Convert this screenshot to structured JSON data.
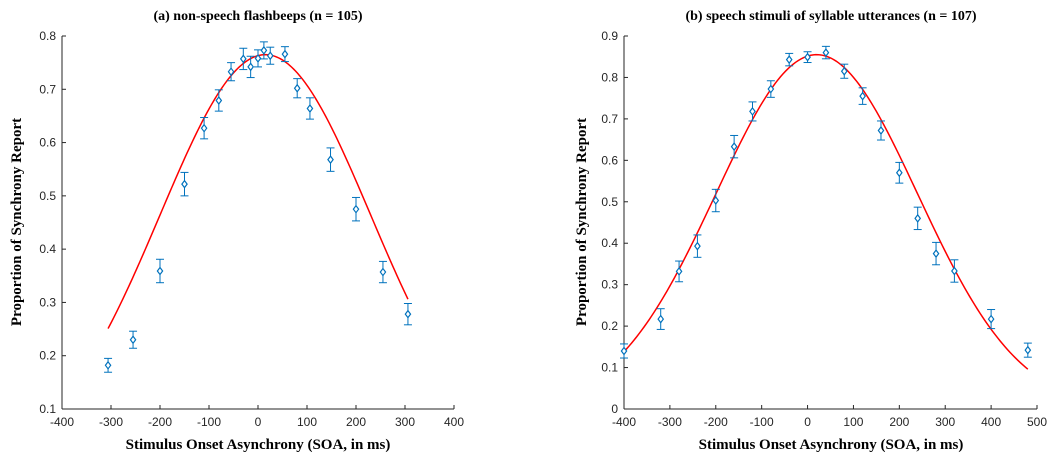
{
  "colors": {
    "data": "#0072bd",
    "fit": "#ff0000",
    "axis": "#262626"
  },
  "chart_data": [
    {
      "type": "scatter",
      "title": "(a) non-speech flashbeeps (n = 105)",
      "xlabel": "Stimulus Onset Asynchrony (SOA, in ms)",
      "ylabel": "Proportion of Synchrony Report",
      "xlim": [
        -400,
        400
      ],
      "ylim": [
        0.1,
        0.8
      ],
      "xticks": [
        -400,
        -300,
        -200,
        -100,
        0,
        100,
        200,
        300,
        400
      ],
      "xtick_labels": [
        "-400",
        "-300",
        "-200",
        "-100",
        "0",
        "100",
        "200",
        "300",
        "400"
      ],
      "yticks": [
        0.1,
        0.2,
        0.3,
        0.4,
        0.5,
        0.6,
        0.7,
        0.8
      ],
      "ytick_labels": [
        "0.1",
        "0.2",
        "0.3",
        "0.4",
        "0.5",
        "0.6",
        "0.7",
        "0.8"
      ],
      "grid": false,
      "series": [
        {
          "marker": "diamond",
          "x": [
            -306,
            -255,
            -200,
            -150,
            -110,
            -80,
            -55,
            -30,
            -15,
            0,
            12,
            25,
            55,
            80,
            106,
            148,
            200,
            255,
            306
          ],
          "y": [
            0.182,
            0.23,
            0.359,
            0.522,
            0.627,
            0.679,
            0.733,
            0.757,
            0.742,
            0.758,
            0.773,
            0.763,
            0.766,
            0.702,
            0.664,
            0.568,
            0.475,
            0.357,
            0.278
          ],
          "error": [
            0.013,
            0.016,
            0.022,
            0.022,
            0.02,
            0.02,
            0.017,
            0.02,
            0.02,
            0.016,
            0.016,
            0.016,
            0.014,
            0.018,
            0.02,
            0.022,
            0.022,
            0.02,
            0.02
          ]
        },
        {
          "kind": "gaussian-fit",
          "amplitude": 0.765,
          "center": 15,
          "width": 215,
          "domain": [
            -306,
            306
          ]
        }
      ]
    },
    {
      "type": "scatter",
      "title": "(b) speech stimuli of syllable utterances (n = 107)",
      "xlabel": "Stimulus Onset Asynchrony (SOA, in ms)",
      "ylabel": "Proportion of Synchrony Report",
      "xlim": [
        -400,
        500
      ],
      "ylim": [
        0,
        0.9
      ],
      "xticks": [
        -400,
        -300,
        -200,
        -100,
        0,
        100,
        200,
        300,
        400,
        500
      ],
      "xtick_labels": [
        "-400",
        "-300",
        "-200",
        "-100",
        "0",
        "100",
        "200",
        "300",
        "400",
        "500"
      ],
      "yticks": [
        0,
        0.1,
        0.2,
        0.3,
        0.4,
        0.5,
        0.6,
        0.7,
        0.8,
        0.9
      ],
      "ytick_labels": [
        "0",
        "0.1",
        "0.2",
        "0.3",
        "0.4",
        "0.5",
        "0.6",
        "0.7",
        "0.8",
        "0.9"
      ],
      "grid": false,
      "series": [
        {
          "marker": "diamond",
          "x": [
            -400,
            -320,
            -280,
            -240,
            -200,
            -160,
            -120,
            -80,
            -40,
            0,
            40,
            80,
            120,
            160,
            200,
            240,
            280,
            320,
            400,
            480
          ],
          "y": [
            0.14,
            0.217,
            0.332,
            0.393,
            0.503,
            0.633,
            0.718,
            0.772,
            0.843,
            0.849,
            0.86,
            0.815,
            0.755,
            0.672,
            0.57,
            0.46,
            0.375,
            0.333,
            0.217,
            0.142
          ],
          "error": [
            0.017,
            0.025,
            0.025,
            0.027,
            0.027,
            0.027,
            0.023,
            0.02,
            0.015,
            0.013,
            0.015,
            0.017,
            0.02,
            0.023,
            0.025,
            0.027,
            0.027,
            0.027,
            0.023,
            0.017
          ]
        },
        {
          "kind": "gaussian-fit",
          "amplitude": 0.855,
          "center": 20,
          "width": 220,
          "domain": [
            -400,
            480
          ]
        }
      ]
    }
  ]
}
